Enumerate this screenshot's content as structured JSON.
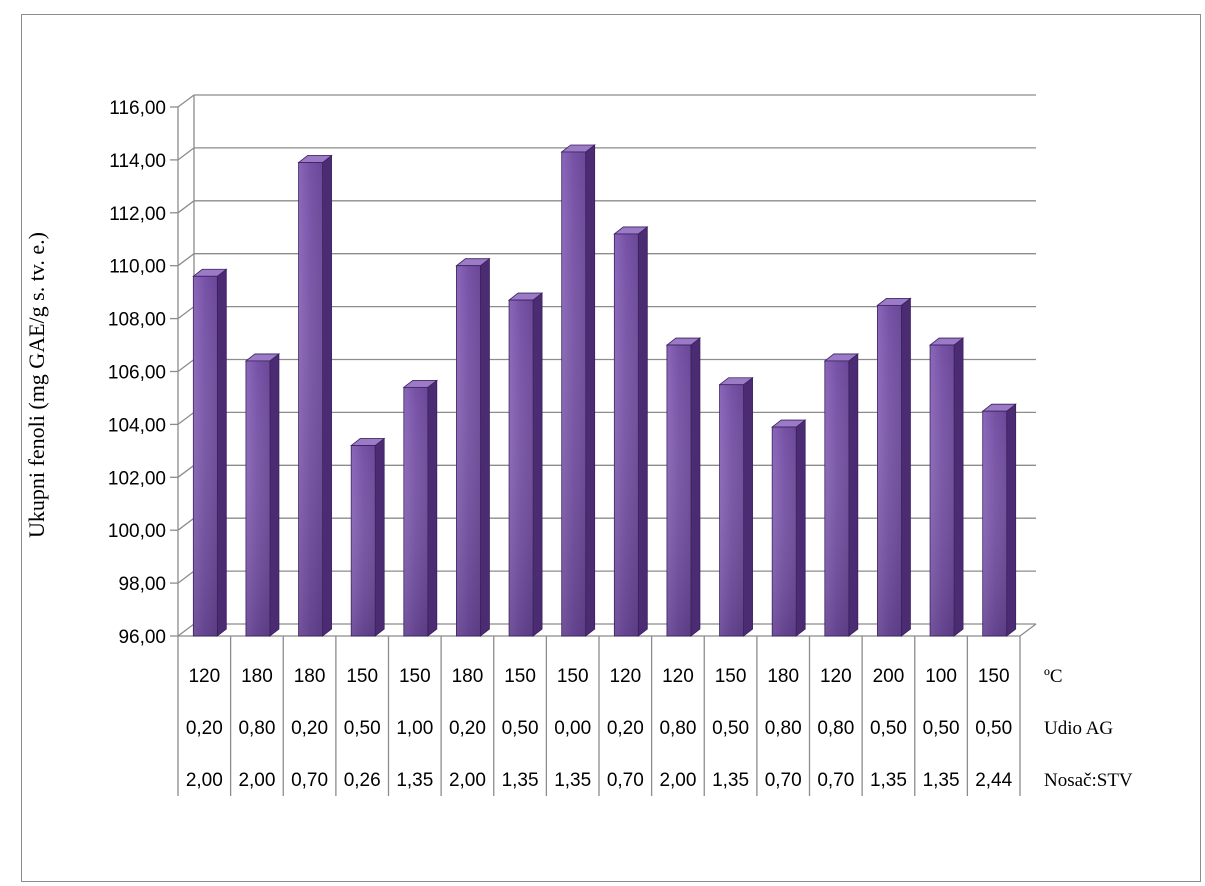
{
  "chart_data": {
    "type": "bar",
    "ylabel": "Ukupni fenoli (mg GAE/g s. tv. e.)",
    "ylim": [
      96,
      116
    ],
    "yticks": [
      "96,00",
      "98,00",
      "100,00",
      "102,00",
      "104,00",
      "106,00",
      "108,00",
      "110,00",
      "112,00",
      "114,00",
      "116,00"
    ],
    "values": [
      109.6,
      106.4,
      113.9,
      103.2,
      105.4,
      110.0,
      108.7,
      114.3,
      111.2,
      107.0,
      105.5,
      103.9,
      106.4,
      108.5,
      107.0,
      104.5
    ],
    "category_rows": [
      {
        "name": "ºC",
        "labels": [
          "120",
          "180",
          "180",
          "150",
          "150",
          "180",
          "150",
          "150",
          "120",
          "120",
          "150",
          "180",
          "120",
          "200",
          "100",
          "150"
        ]
      },
      {
        "name": "Udio AG",
        "labels": [
          "0,20",
          "0,80",
          "0,20",
          "0,50",
          "1,00",
          "0,20",
          "0,50",
          "0,00",
          "0,20",
          "0,80",
          "0,50",
          "0,80",
          "0,80",
          "0,50",
          "0,50",
          "0,50"
        ]
      },
      {
        "name": "Nosač:STV",
        "labels": [
          "2,00",
          "2,00",
          "0,70",
          "0,26",
          "1,35",
          "2,00",
          "1,35",
          "1,35",
          "0,70",
          "2,00",
          "1,35",
          "0,70",
          "0,70",
          "1,35",
          "1,35",
          "2,44"
        ]
      }
    ],
    "grid": true,
    "legend": "none",
    "colors": {
      "front": "#7a55aa",
      "side": "#4b2c73",
      "top": "#9c7bc6",
      "grid": "#8c8c8c"
    }
  }
}
